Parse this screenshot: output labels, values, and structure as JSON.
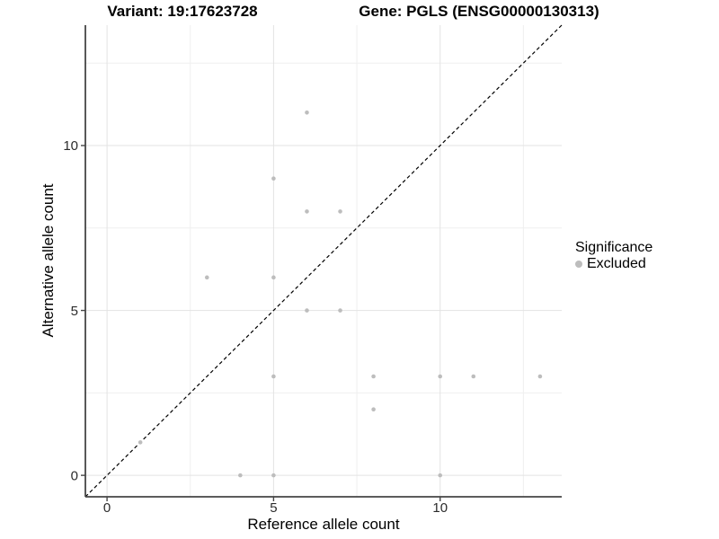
{
  "header": {
    "title_left": "Variant: 19:17623728",
    "title_right": "Gene: PGLS (ENSG00000130313)"
  },
  "chart_data": {
    "type": "scatter",
    "xlabel": "Reference allele count",
    "ylabel": "Alternative allele count",
    "xlim": [
      -0.65,
      13.65
    ],
    "ylim": [
      -0.65,
      13.65
    ],
    "x_ticks": [
      0,
      5,
      10
    ],
    "y_ticks": [
      0,
      5,
      10
    ],
    "x_minor_gridlines": [
      2.5,
      7.5,
      12.5
    ],
    "y_minor_gridlines": [
      2.5,
      7.5,
      12.5
    ],
    "grid": "on",
    "legend_position": "right",
    "series": [
      {
        "name": "Excluded",
        "color": "#bdbdbd",
        "points": [
          [
            1,
            1
          ],
          [
            3,
            6
          ],
          [
            4,
            0
          ],
          [
            5,
            0
          ],
          [
            5,
            3
          ],
          [
            5,
            6
          ],
          [
            5,
            9
          ],
          [
            6,
            5
          ],
          [
            6,
            8
          ],
          [
            6,
            11
          ],
          [
            7,
            5
          ],
          [
            7,
            8
          ],
          [
            8,
            2
          ],
          [
            8,
            3
          ],
          [
            10,
            0
          ],
          [
            10,
            3
          ],
          [
            11,
            3
          ],
          [
            13,
            3
          ]
        ]
      }
    ],
    "identity_line": {
      "style": "dashed",
      "from": [
        -0.65,
        -0.65
      ],
      "to": [
        13.65,
        13.65
      ],
      "color": "#000000"
    },
    "legend": {
      "title": "Significance",
      "items": [
        {
          "label": "Excluded",
          "color": "#bdbdbd"
        }
      ]
    },
    "colors": {
      "point": "#bdbdbd",
      "grid_major": "#e3e3e3",
      "grid_minor": "#efefef",
      "axis_line": "#454545",
      "axis_text": "#2b2b2b"
    }
  }
}
